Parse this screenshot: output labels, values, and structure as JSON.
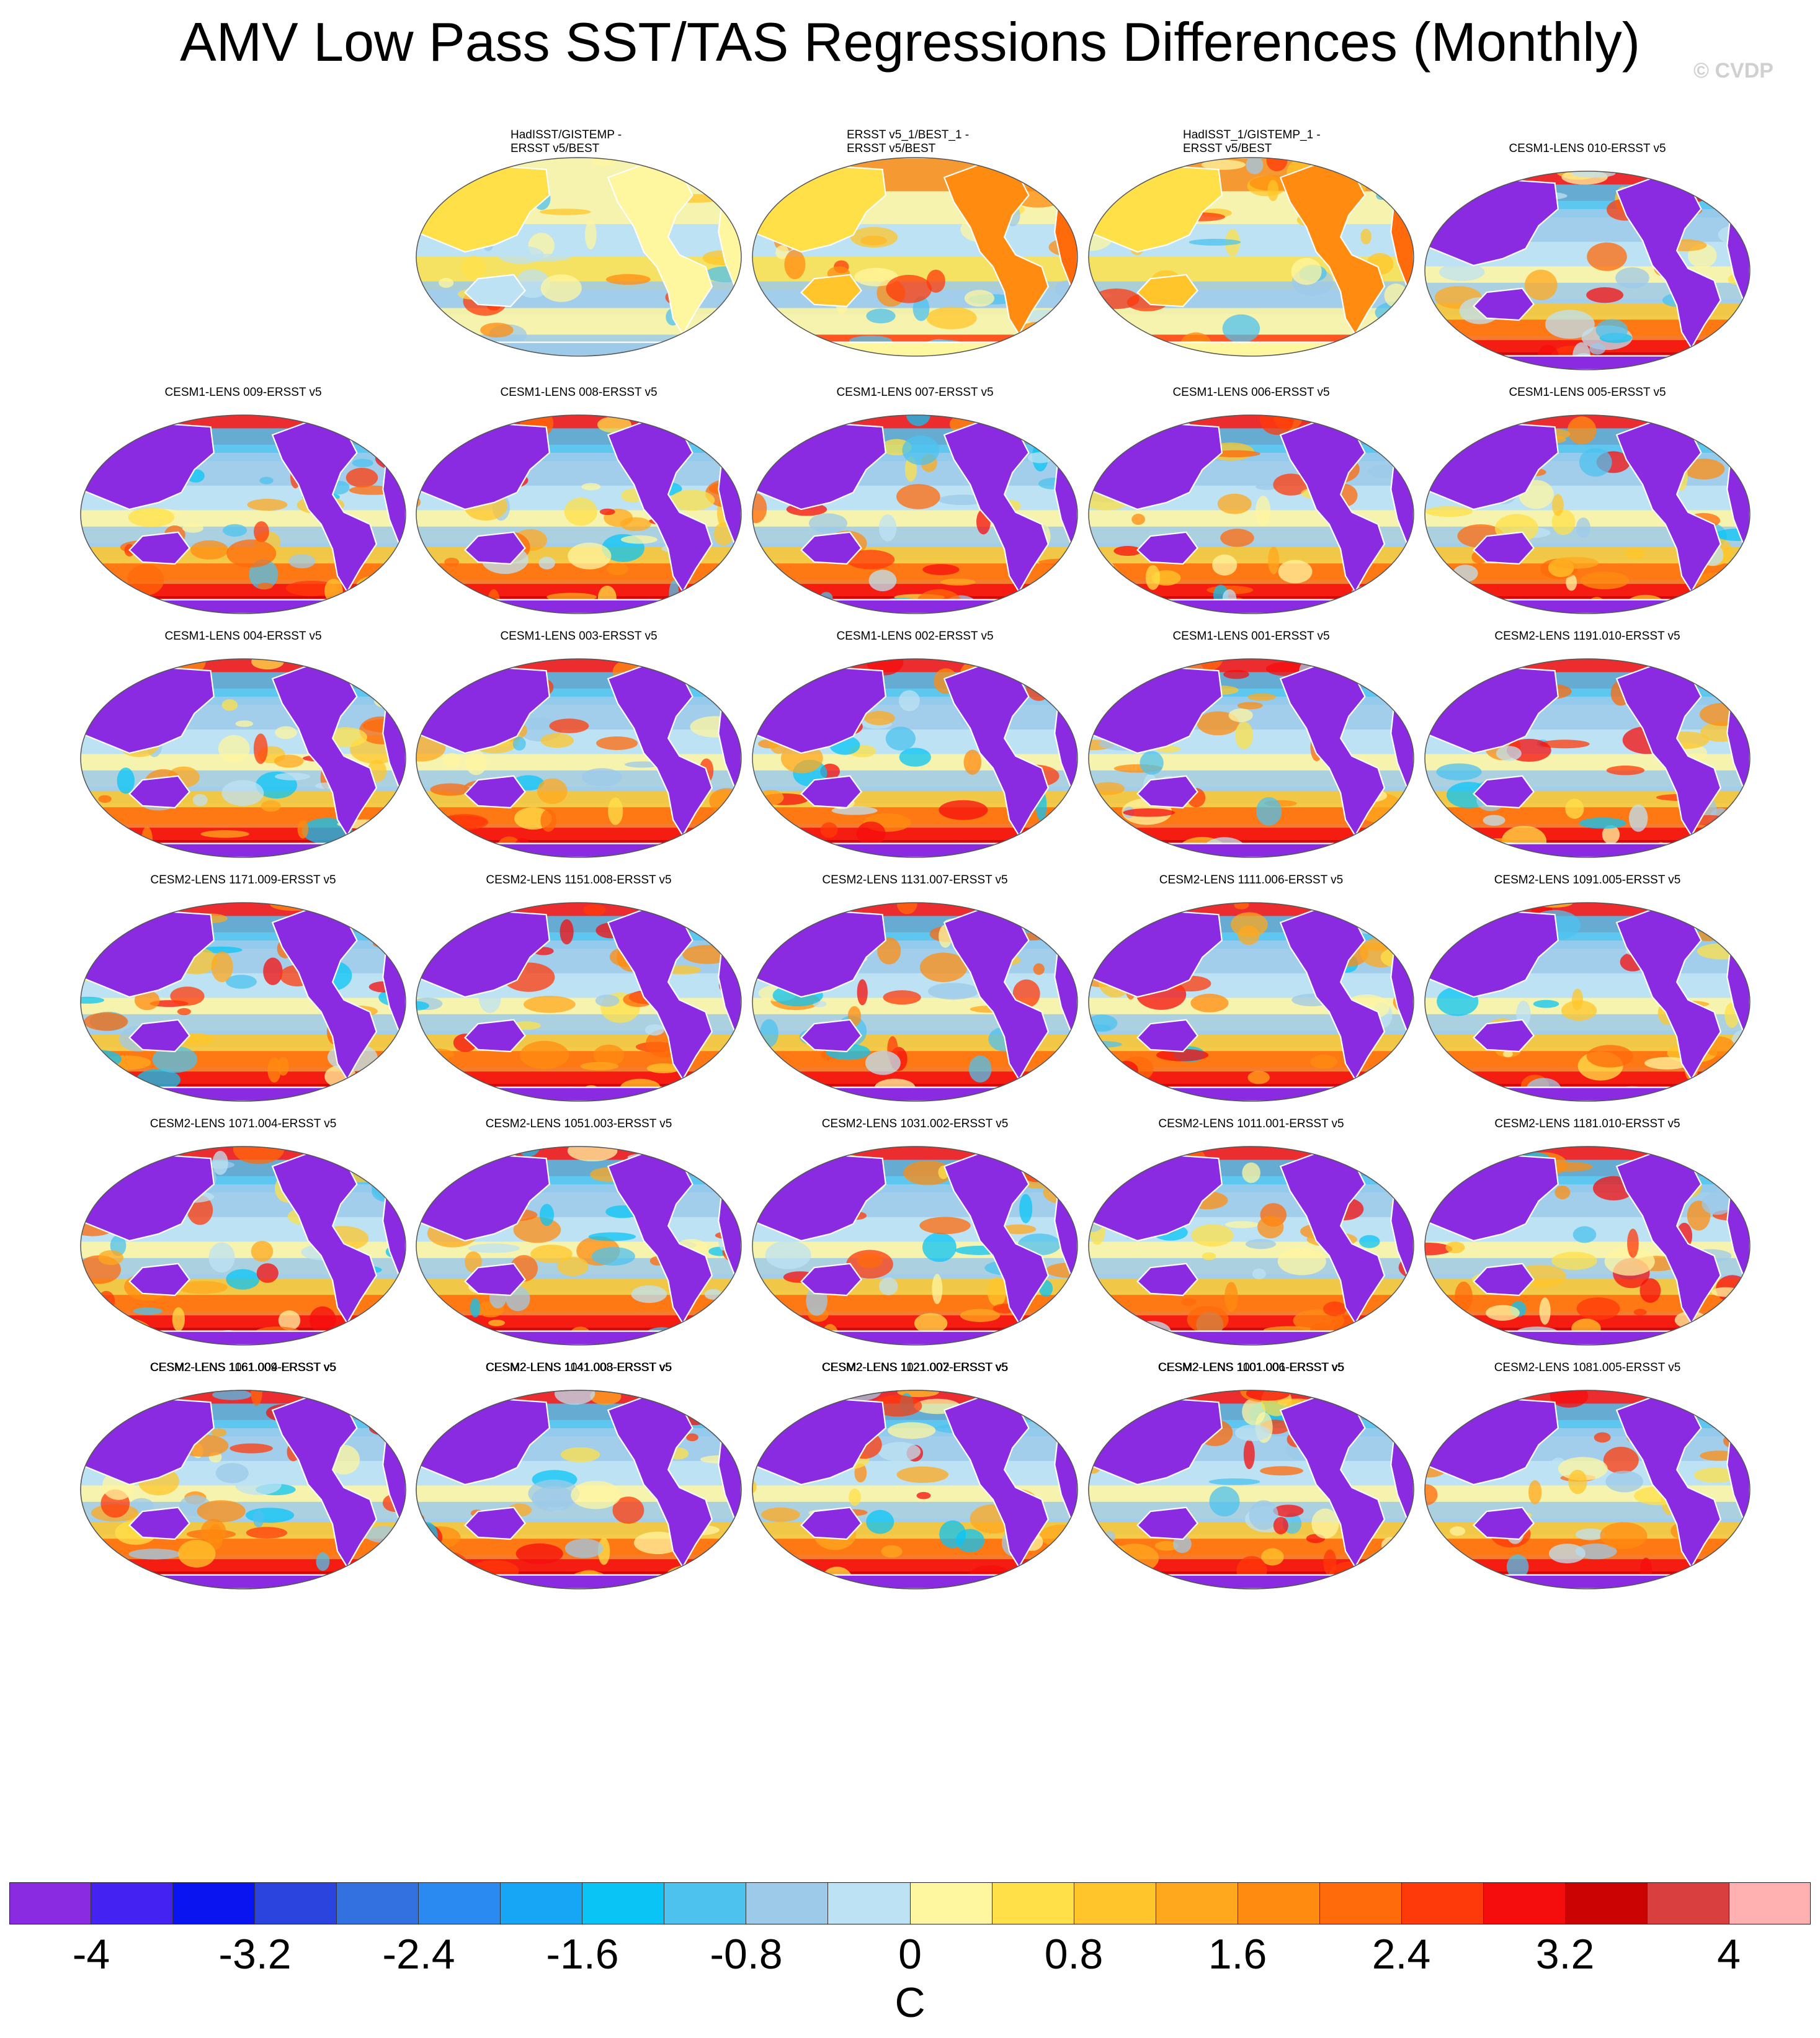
{
  "title": "AMV Low Pass SST/TAS Regressions Differences (Monthly)",
  "copyright": "© CVDP",
  "panels": [
    "HadISST/GISTEMP -\nERSST v5/BEST",
    "ERSST v5_1/BEST_1 -\nERSST v5/BEST",
    "HadISST_1/GISTEMP_1 -\nERSST v5/BEST",
    "CESM1-LENS 010-ERSST v5",
    "CESM1-LENS 009-ERSST v5",
    "CESM1-LENS 008-ERSST v5",
    "CESM1-LENS 007-ERSST v5",
    "CESM1-LENS 006-ERSST v5",
    "CESM1-LENS 005-ERSST v5",
    "CESM1-LENS 004-ERSST v5",
    "CESM1-LENS 003-ERSST v5",
    "CESM1-LENS 002-ERSST v5",
    "CESM1-LENS 001-ERSST v5",
    "CESM2-LENS 1191.010-ERSST v5",
    "CESM2-LENS 1171.009-ERSST v5",
    "CESM2-LENS 1151.008-ERSST v5",
    "CESM2-LENS 1131.007-ERSST v5",
    "CESM2-LENS 1111.006-ERSST v5",
    "CESM2-LENS 1091.005-ERSST v5",
    "CESM2-LENS 1071.004-ERSST v5",
    "CESM2-LENS 1051.003-ERSST v5",
    "CESM2-LENS 1031.002-ERSST v5",
    "CESM2-LENS 1011.001-ERSST v5",
    "CESM2-LENS 1181.010-ERSST v5",
    "CESM2-LENS 1161.009-ERSST v5",
    "CESM2-LENS 1141.008-ERSST v5",
    "CESM2-LENS 1121.007-ERSST v5",
    "CESM2-LENS 1101.006-ERSST v5",
    "CESM2-LENS 1081.005-ERSST v5",
    "CESM2-LENS 1061.004-ERSST v5",
    "CESM2-LENS 1041.003-ERSST v5",
    "CESM2-LENS 1021.002-ERSST v5",
    "CESM2-LENS 1001.001-ERSST v5"
  ],
  "colorbar": {
    "colors": [
      "#8a2be2",
      "#4422f2",
      "#0a14f0",
      "#2a44dd",
      "#3370e0",
      "#2a8af2",
      "#16a6f5",
      "#0ac4f6",
      "#4ec2ef",
      "#9ecaea",
      "#bde2f3",
      "#fff6a0",
      "#ffe048",
      "#ffc52a",
      "#ffa81e",
      "#ff8c10",
      "#ff6a0a",
      "#ff3a0a",
      "#f50d0d",
      "#cc0303",
      "#da3f3f",
      "#ffb0b0"
    ],
    "ticks": [
      "-4",
      "-3.2",
      "-2.4",
      "-1.6",
      "-0.8",
      "0",
      "0.8",
      "1.6",
      "2.4",
      "3.2",
      "4"
    ],
    "unit": "C"
  }
}
